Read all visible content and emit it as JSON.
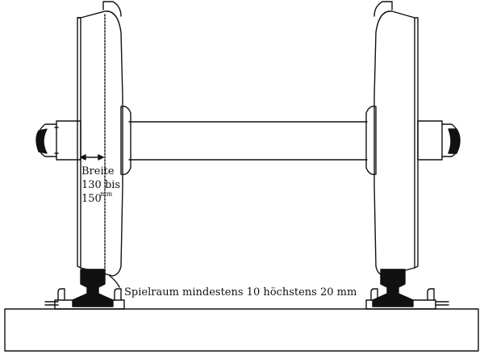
{
  "labels": {
    "width_line1": "Breite",
    "width_line2": "130 bis",
    "width_line3": "150",
    "width_unit": "mm",
    "clearance": "Spielraum mindestens 10 höchstens 20 mm"
  },
  "colors": {
    "ink": "#111111",
    "paper": "#ffffff"
  }
}
